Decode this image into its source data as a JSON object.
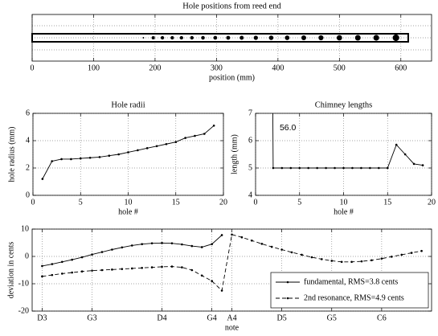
{
  "chart_data": [
    {
      "type": "scatter",
      "title": "Hole positions from reed end",
      "xlabel": "position (mm)",
      "x": [
        98,
        181,
        197,
        212,
        228,
        243,
        260,
        278,
        298,
        319,
        341,
        364,
        389,
        415,
        442,
        470,
        500,
        530,
        560,
        592
      ],
      "values": [
        0.5,
        1.2,
        2.5,
        2.65,
        2.65,
        2.7,
        2.75,
        2.8,
        2.9,
        3.0,
        3.15,
        3.3,
        3.45,
        3.6,
        3.75,
        3.9,
        4.2,
        4.35,
        4.5,
        5.1
      ],
      "tube": [
        0,
        612
      ],
      "color": "#000000",
      "xlim": [
        0,
        650
      ],
      "xticks": [
        0,
        100,
        200,
        300,
        400,
        500,
        600
      ],
      "grid": true
    },
    {
      "type": "line",
      "title": "Hole radii",
      "xlabel": "hole #",
      "ylabel": "hole radius (mm)",
      "x": [
        1,
        2,
        3,
        4,
        5,
        6,
        7,
        8,
        9,
        10,
        11,
        12,
        13,
        14,
        15,
        16,
        17,
        18,
        19
      ],
      "values": [
        1.2,
        2.5,
        2.65,
        2.65,
        2.7,
        2.75,
        2.8,
        2.9,
        3.0,
        3.15,
        3.3,
        3.45,
        3.6,
        3.75,
        3.9,
        4.2,
        4.35,
        4.5,
        5.1
      ],
      "color": "#000000",
      "xlim": [
        0,
        20
      ],
      "xticks": [
        0,
        5,
        10,
        15,
        20
      ],
      "ylim": [
        0,
        6
      ],
      "yticks": [
        0,
        2,
        4,
        6
      ],
      "grid": true
    },
    {
      "type": "line",
      "title": "Chimney lengths",
      "xlabel": "hole #",
      "ylabel": "length (mm)",
      "x": [
        1,
        2,
        3,
        4,
        5,
        6,
        7,
        8,
        9,
        10,
        11,
        12,
        13,
        14,
        15,
        16,
        17,
        18,
        19
      ],
      "values": [
        56.0,
        5,
        5,
        5,
        5,
        5,
        5,
        5,
        5,
        5,
        5,
        5,
        5,
        5,
        5,
        5.85,
        5.5,
        5.15,
        5.1
      ],
      "value_labels": [
        "56.0",
        null,
        null,
        null,
        null,
        null,
        null,
        null,
        null,
        null,
        null,
        null,
        null,
        null,
        null,
        null,
        null,
        null,
        null
      ],
      "color": "#000000",
      "xlim": [
        0,
        20
      ],
      "xticks": [
        0,
        5,
        10,
        15,
        20
      ],
      "ylim": [
        4,
        7
      ],
      "yticks": [
        4,
        5,
        6,
        7
      ],
      "grid": true
    },
    {
      "type": "line",
      "xlabel": "note",
      "ylabel": "deviation in cents",
      "series": [
        {
          "name": "fundamental, RMS=3.8 cents",
          "color": "#000000",
          "style": "solid",
          "x": [
            50,
            51,
            52,
            53,
            54,
            55,
            56,
            57,
            58,
            59,
            60,
            61,
            62,
            63,
            64,
            65,
            66,
            67,
            68
          ],
          "values": [
            -3.5,
            -2.8,
            -2,
            -1.2,
            -0.3,
            0.7,
            1.6,
            2.5,
            3.3,
            4,
            4.5,
            4.8,
            4.9,
            4.8,
            4.4,
            3.8,
            3.4,
            4.5,
            7.8
          ]
        },
        {
          "name": "2nd resonance, RMS=4.9 cents",
          "color": "#000000",
          "style": "dashed",
          "x": [
            50,
            51,
            52,
            53,
            54,
            55,
            56,
            57,
            58,
            59,
            60,
            61,
            62,
            63,
            64,
            65,
            66,
            67,
            68,
            69,
            70,
            71,
            72,
            73,
            74,
            75,
            76,
            77,
            78,
            79,
            80,
            81,
            82,
            83,
            84,
            85,
            86,
            87,
            88
          ],
          "values": [
            -7.3,
            -6.8,
            -6.3,
            -5.9,
            -5.5,
            -5.2,
            -5,
            -4.8,
            -4.6,
            -4.4,
            -4.2,
            -4,
            -3.8,
            -3.7,
            -4,
            -5,
            -7,
            -9,
            -12.5,
            8,
            7,
            5.8,
            4.6,
            3.5,
            2.5,
            1.5,
            0.6,
            -0.3,
            -1,
            -1.6,
            -2,
            -2,
            -1.8,
            -1.4,
            -0.8,
            -0.1,
            0.6,
            1.3,
            2
          ]
        }
      ],
      "xlim": [
        49,
        89
      ],
      "xticks": [
        {
          "value": 50,
          "label": "D3"
        },
        {
          "value": 55,
          "label": "G3"
        },
        {
          "value": 62,
          "label": "D4"
        },
        {
          "value": 67,
          "label": "G4"
        },
        {
          "value": 69,
          "label": "A4"
        },
        {
          "value": 74,
          "label": "D5"
        },
        {
          "value": 79,
          "label": "G5"
        },
        {
          "value": 84,
          "label": "C6"
        }
      ],
      "ylim": [
        -20,
        10
      ],
      "yticks": [
        -20,
        -10,
        0,
        10
      ],
      "grid": true,
      "legend": "lower right"
    }
  ]
}
